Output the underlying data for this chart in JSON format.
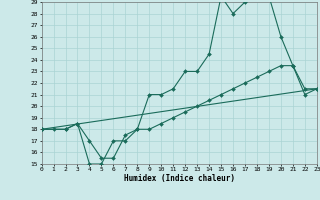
{
  "xlabel": "Humidex (Indice chaleur)",
  "xlim": [
    0,
    23
  ],
  "ylim": [
    15,
    29
  ],
  "yticks": [
    15,
    16,
    17,
    18,
    19,
    20,
    21,
    22,
    23,
    24,
    25,
    26,
    27,
    28,
    29
  ],
  "xticks": [
    0,
    1,
    2,
    3,
    4,
    5,
    6,
    7,
    8,
    9,
    10,
    11,
    12,
    13,
    14,
    15,
    16,
    17,
    18,
    19,
    20,
    21,
    22,
    23
  ],
  "background_color": "#cce9e9",
  "line_color": "#1a6b5a",
  "grid_color": "#aad4d4",
  "line1_x": [
    0,
    1,
    2,
    3,
    4,
    5,
    6,
    7,
    8,
    9,
    10,
    11,
    12,
    13,
    14,
    15,
    16,
    17,
    18,
    19,
    20,
    21,
    22,
    23
  ],
  "line1_y": [
    18,
    18,
    18,
    18.5,
    17,
    15.5,
    15.5,
    17.5,
    18,
    21,
    21,
    21.5,
    23,
    23,
    24.5,
    29.5,
    28,
    29,
    29.5,
    29.5,
    26,
    23.5,
    21,
    21.5
  ],
  "line2_x": [
    0,
    2,
    3,
    4,
    5,
    6,
    7,
    8,
    9,
    10,
    11,
    12,
    13,
    14,
    15,
    16,
    17,
    18,
    19,
    20,
    21,
    22,
    23
  ],
  "line2_y": [
    18,
    18,
    18.5,
    15,
    15,
    17,
    17,
    18,
    18,
    18.5,
    19,
    19.5,
    20,
    20.5,
    21,
    21.5,
    22,
    22.5,
    23,
    23.5,
    23.5,
    21.5,
    21.5
  ],
  "line3_x": [
    0,
    23
  ],
  "line3_y": [
    18,
    21.5
  ]
}
